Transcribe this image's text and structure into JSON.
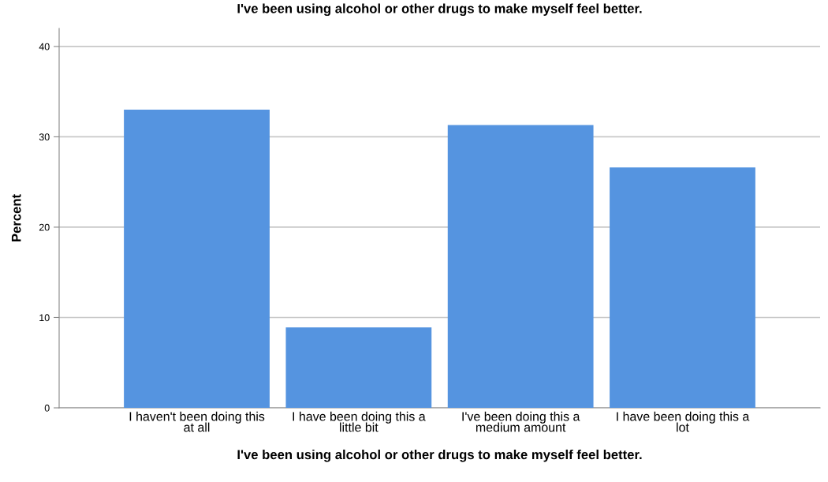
{
  "chart_data": {
    "type": "bar",
    "title": "I've been using alcohol or other drugs to make myself feel better.",
    "xlabel": "I've been using alcohol or other drugs to make myself feel better.",
    "ylabel": "Percent",
    "categories": [
      "I haven't been doing this\nat all",
      "I have been doing this a\nlittle bit",
      "I've been doing this a\nmedium amount",
      "I have been doing this a\nlot"
    ],
    "values": [
      33.0,
      8.9,
      31.3,
      26.6
    ],
    "color": "#5594e0",
    "ylim": [
      0,
      42
    ],
    "yticks": [
      0,
      10,
      20,
      30,
      40
    ],
    "grid": "y"
  }
}
